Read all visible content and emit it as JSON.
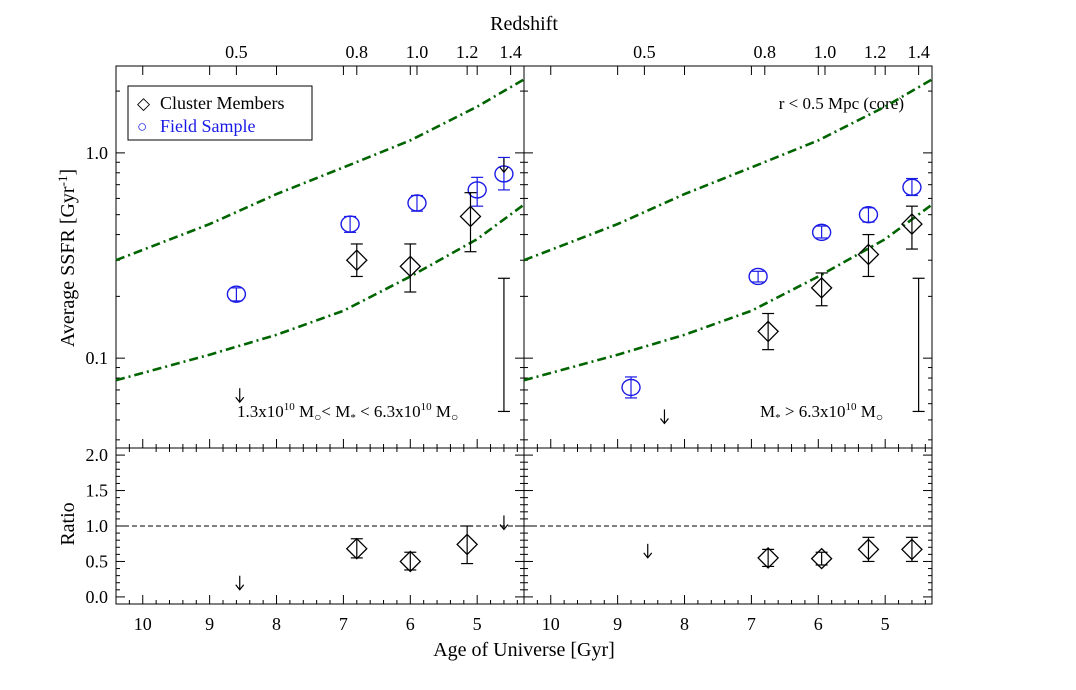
{
  "chart_data": {
    "type": "scatter",
    "top_axis_title": "Redshift",
    "top_ticks": [
      "0.5",
      "0.8",
      "1.0",
      "1.2",
      "1.4"
    ],
    "top_tick_ages": [
      8.6,
      6.8,
      5.9,
      5.15,
      4.5
    ],
    "x_axis_title": "Age of Universe [Gyr]",
    "x_ticks": [
      "10",
      "9",
      "8",
      "7",
      "6",
      "5"
    ],
    "xlim": [
      10.4,
      4.3
    ],
    "ylabel_upper": "Average SSFR [Gyr",
    "ylabel_upper_sup": "-1",
    "ylabel_upper_close": "]",
    "ylabel_lower": "Ratio",
    "ylim_upper": [
      0.0365,
      2.65
    ],
    "yticks_upper": [
      "1.0",
      "0.1"
    ],
    "ylim_lower": [
      -0.1,
      2.1
    ],
    "yticks_lower": [
      "2.0",
      "1.5",
      "1.0",
      "0.5",
      "0.0"
    ],
    "ratio_reference": 1.0,
    "legend": {
      "cluster": "Cluster Members",
      "field": "Field Sample",
      "cluster_symbol": "◇",
      "field_symbol": "○"
    },
    "colors": {
      "cluster": "#000000",
      "field": "#1a1ae6",
      "model": "#006400"
    },
    "panels": [
      {
        "id": "left",
        "mass_label": {
          "lo_coef": "1.3x10",
          "lo_exp": "10",
          "lo_unit": " M",
          "lo_sun": "○",
          "mid": "< M",
          "mid_star": "*",
          "mid2": " < 6.3x10",
          "hi_exp": "10",
          "hi_unit": " M",
          "hi_sun": "○"
        },
        "core_label": "",
        "field": [
          {
            "x": 8.6,
            "y": 0.205,
            "ylo": 0.19,
            "yhi": 0.22
          },
          {
            "x": 6.9,
            "y": 0.45,
            "ylo": 0.41,
            "yhi": 0.49
          },
          {
            "x": 5.9,
            "y": 0.57,
            "ylo": 0.52,
            "yhi": 0.62
          },
          {
            "x": 5.0,
            "y": 0.66,
            "ylo": 0.55,
            "yhi": 0.76
          },
          {
            "x": 4.6,
            "y": 0.79,
            "ylo": 0.66,
            "yhi": 0.95
          }
        ],
        "cluster": [
          {
            "x": 6.8,
            "y": 0.3,
            "ylo": 0.25,
            "yhi": 0.36
          },
          {
            "x": 6.0,
            "y": 0.28,
            "ylo": 0.21,
            "yhi": 0.36
          },
          {
            "x": 5.1,
            "y": 0.49,
            "ylo": 0.33,
            "yhi": 0.64
          }
        ],
        "upper_limits_ssfr": [
          {
            "x": 8.55,
            "y": 0.066
          },
          {
            "x": 4.6,
            "y": 0.87
          }
        ],
        "model_upper": [
          [
            10.4,
            0.3
          ],
          [
            9,
            0.45
          ],
          [
            8,
            0.63
          ],
          [
            7,
            0.85
          ],
          [
            6,
            1.15
          ],
          [
            5,
            1.68
          ],
          [
            4.3,
            2.28
          ]
        ],
        "model_lower": [
          [
            10.4,
            0.078
          ],
          [
            9,
            0.104
          ],
          [
            8,
            0.13
          ],
          [
            7,
            0.17
          ],
          [
            6,
            0.25
          ],
          [
            5,
            0.38
          ],
          [
            4.3,
            0.56
          ]
        ],
        "typical_error": {
          "x": 4.6,
          "ylo": 0.055,
          "yhi": 0.245
        },
        "ratio": [
          {
            "x": 6.8,
            "y": 0.68,
            "ylo": 0.55,
            "yhi": 0.82
          },
          {
            "x": 6.0,
            "y": 0.5,
            "ylo": 0.38,
            "yhi": 0.63
          },
          {
            "x": 5.15,
            "y": 0.74,
            "ylo": 0.47,
            "yhi": 1.0
          }
        ],
        "ratio_upper_limits": [
          {
            "x": 8.55,
            "y": 0.2
          },
          {
            "x": 4.6,
            "y": 1.05
          }
        ]
      },
      {
        "id": "right",
        "mass_label": {
          "lo_coef": "",
          "lo_exp": "",
          "lo_unit": "",
          "lo_sun": "",
          "mid": "M",
          "mid_star": "*",
          "mid2": " > 6.3x10",
          "hi_exp": "10",
          "hi_unit": " M",
          "hi_sun": "○"
        },
        "core_label": "r < 0.5 Mpc (core)",
        "field": [
          {
            "x": 8.8,
            "y": 0.072,
            "ylo": 0.064,
            "yhi": 0.081
          },
          {
            "x": 6.9,
            "y": 0.25,
            "ylo": 0.235,
            "yhi": 0.265
          },
          {
            "x": 5.95,
            "y": 0.41,
            "ylo": 0.385,
            "yhi": 0.44
          },
          {
            "x": 5.25,
            "y": 0.5,
            "ylo": 0.46,
            "yhi": 0.54
          },
          {
            "x": 4.6,
            "y": 0.68,
            "ylo": 0.62,
            "yhi": 0.75
          }
        ],
        "cluster": [
          {
            "x": 6.75,
            "y": 0.135,
            "ylo": 0.11,
            "yhi": 0.165
          },
          {
            "x": 5.95,
            "y": 0.22,
            "ylo": 0.18,
            "yhi": 0.26
          },
          {
            "x": 5.25,
            "y": 0.32,
            "ylo": 0.25,
            "yhi": 0.4
          },
          {
            "x": 4.6,
            "y": 0.45,
            "ylo": 0.34,
            "yhi": 0.55
          }
        ],
        "upper_limits_ssfr": [
          {
            "x": 8.3,
            "y": 0.052
          }
        ],
        "model_upper": [
          [
            10.4,
            0.3
          ],
          [
            9,
            0.45
          ],
          [
            8,
            0.63
          ],
          [
            7,
            0.85
          ],
          [
            6,
            1.15
          ],
          [
            5,
            1.68
          ],
          [
            4.3,
            2.28
          ]
        ],
        "model_lower": [
          [
            10.4,
            0.078
          ],
          [
            9,
            0.104
          ],
          [
            8,
            0.13
          ],
          [
            7,
            0.17
          ],
          [
            6,
            0.25
          ],
          [
            5,
            0.38
          ],
          [
            4.3,
            0.56
          ]
        ],
        "typical_error": {
          "x": 4.5,
          "ylo": 0.055,
          "yhi": 0.245
        },
        "ratio": [
          {
            "x": 6.75,
            "y": 0.55,
            "ylo": 0.43,
            "yhi": 0.67
          },
          {
            "x": 5.95,
            "y": 0.54,
            "ylo": 0.45,
            "yhi": 0.63
          },
          {
            "x": 5.25,
            "y": 0.67,
            "ylo": 0.5,
            "yhi": 0.84
          },
          {
            "x": 4.6,
            "y": 0.67,
            "ylo": 0.5,
            "yhi": 0.84
          }
        ],
        "ratio_upper_limits": [
          {
            "x": 8.55,
            "y": 0.65
          }
        ]
      }
    ]
  }
}
